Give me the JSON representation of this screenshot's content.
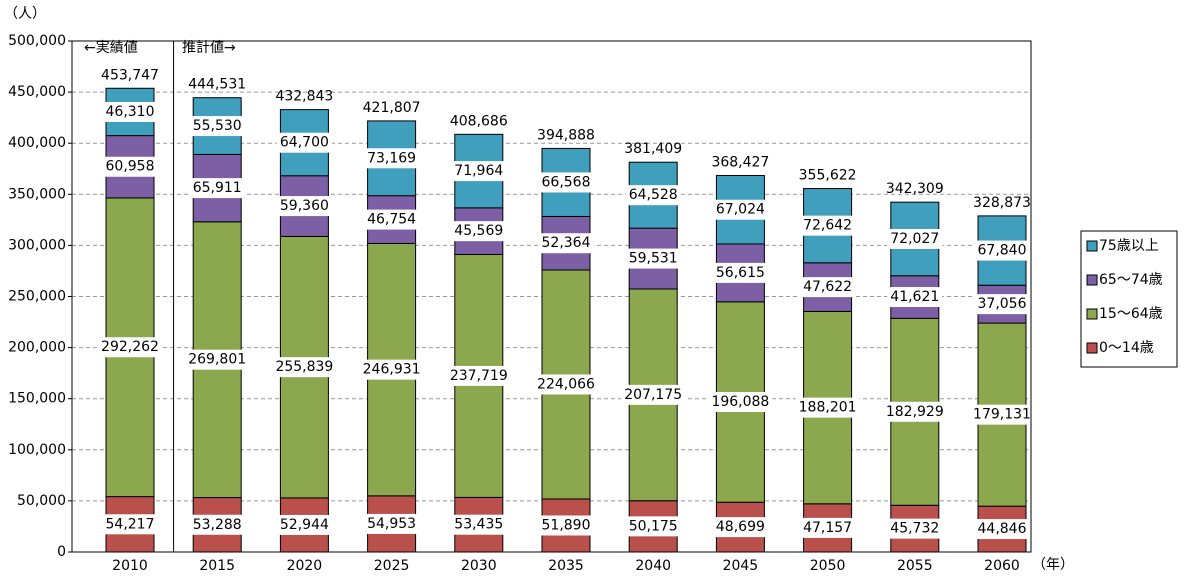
{
  "chart_data": {
    "type": "stacked_bar",
    "y_unit": "（人）",
    "x_unit": "（年）",
    "annotations": [
      "←実績値",
      "推計値→"
    ],
    "categories": [
      "2010",
      "2015",
      "2020",
      "2025",
      "2030",
      "2035",
      "2040",
      "2045",
      "2050",
      "2055",
      "2060"
    ],
    "series": [
      {
        "name": "0～14歳",
        "color": "#b9504c",
        "values": [
          54217,
          53288,
          52944,
          54953,
          53435,
          51890,
          50175,
          48699,
          47157,
          45732,
          44846
        ],
        "value_labels": [
          "54,217",
          "53,288",
          "52,944",
          "54,953",
          "53,435",
          "51,890",
          "50,175",
          "48,699",
          "47,157",
          "45,732",
          "44,846"
        ]
      },
      {
        "name": "15～64歳",
        "color": "#8ba84e",
        "values": [
          292262,
          269801,
          255839,
          246931,
          237719,
          224066,
          207175,
          196088,
          188201,
          182929,
          179131
        ],
        "value_labels": [
          "292,262",
          "269,801",
          "255,839",
          "246,931",
          "237,719",
          "224,066",
          "207,175",
          "196,088",
          "188,201",
          "182,929",
          "179,131"
        ]
      },
      {
        "name": "65～74歳",
        "color": "#7c5fa4",
        "values": [
          60958,
          65911,
          59360,
          46754,
          45569,
          52364,
          59531,
          56615,
          47622,
          41621,
          37056
        ],
        "value_labels": [
          "60,958",
          "65,911",
          "59,360",
          "46,754",
          "45,569",
          "52,364",
          "59,531",
          "56,615",
          "47,622",
          "41,621",
          "37,056"
        ]
      },
      {
        "name": "75歳以上",
        "color": "#3f9fbd",
        "values": [
          46310,
          55530,
          64700,
          73169,
          71964,
          66568,
          64528,
          67024,
          72642,
          72027,
          67840
        ],
        "value_labels": [
          "46,310",
          "55,530",
          "64,700",
          "73,169",
          "71,964",
          "66,568",
          "64,528",
          "67,024",
          "72,642",
          "72,027",
          "67,840"
        ]
      }
    ],
    "totals": {
      "values": [
        453747,
        444531,
        432843,
        421807,
        408686,
        394888,
        381409,
        368427,
        355622,
        342309,
        328873
      ],
      "value_labels": [
        "453,747",
        "444,531",
        "432,843",
        "421,807",
        "408,686",
        "394,888",
        "381,409",
        "368,427",
        "355,622",
        "342,309",
        "328,873"
      ]
    },
    "ylim": [
      0,
      500000
    ],
    "yticks": [
      {
        "value": 0,
        "label": "0"
      },
      {
        "value": 50000,
        "label": "50,000"
      },
      {
        "value": 100000,
        "label": "100,000"
      },
      {
        "value": 150000,
        "label": "150,000"
      },
      {
        "value": 200000,
        "label": "200,000"
      },
      {
        "value": 250000,
        "label": "250,000"
      },
      {
        "value": 300000,
        "label": "300,000"
      },
      {
        "value": 350000,
        "label": "350,000"
      },
      {
        "value": 400000,
        "label": "400,000"
      },
      {
        "value": 450000,
        "label": "450,000"
      },
      {
        "value": 500000,
        "label": "500,000"
      }
    ],
    "grid": true,
    "legend": "right"
  }
}
